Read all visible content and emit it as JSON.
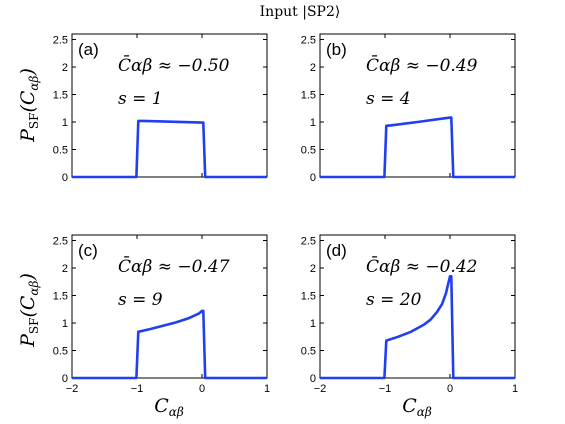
{
  "figure": {
    "title": "Input |SP2⟩",
    "ylabel_main": "P",
    "ylabel_sub": "SF",
    "ylabel_arg": "(C",
    "ylabel_argsub": "αβ",
    "ylabel_close": ")",
    "xlabel_main": "C",
    "xlabel_sub": "αβ"
  },
  "chart_data": [
    {
      "type": "line",
      "panel": "(a)",
      "annotation_c": "C̄αβ ≈ −0.50",
      "annotation_s": "s = 1",
      "xlim": [
        -2,
        1
      ],
      "ylim": [
        0,
        2.6
      ],
      "xticks": [
        -2,
        -1,
        0,
        1
      ],
      "yticks": [
        0,
        0.5,
        1,
        1.5,
        2,
        2.5
      ],
      "series": [
        {
          "x": [
            -2,
            -1.01,
            -0.98,
            -0.9,
            0,
            0.02,
            0.05,
            1
          ],
          "y": [
            0,
            0,
            1.02,
            1.02,
            0.99,
            0.99,
            0,
            0
          ]
        }
      ]
    },
    {
      "type": "line",
      "panel": "(b)",
      "annotation_c": "C̄αβ ≈ −0.49",
      "annotation_s": "s = 4",
      "xlim": [
        -2,
        1
      ],
      "ylim": [
        0,
        2.6
      ],
      "xticks": [
        -2,
        -1,
        0,
        1
      ],
      "yticks": [
        0,
        0.5,
        1,
        1.5,
        2,
        2.5
      ],
      "series": [
        {
          "x": [
            -2,
            -1.01,
            -0.98,
            -0.9,
            -0.5,
            0,
            0.02,
            0.05,
            1
          ],
          "y": [
            0,
            0,
            0.93,
            0.94,
            1.0,
            1.08,
            1.08,
            0,
            0
          ]
        }
      ]
    },
    {
      "type": "line",
      "panel": "(c)",
      "annotation_c": "C̄αβ ≈ −0.47",
      "annotation_s": "s = 9",
      "xlim": [
        -2,
        1
      ],
      "ylim": [
        0,
        2.6
      ],
      "xticks": [
        -2,
        -1,
        0,
        1
      ],
      "yticks": [
        0,
        0.5,
        1,
        1.5,
        2,
        2.5
      ],
      "series": [
        {
          "x": [
            -2,
            -1.01,
            -0.98,
            -0.8,
            -0.6,
            -0.4,
            -0.2,
            -0.05,
            0,
            0.02,
            0.05,
            1
          ],
          "y": [
            0,
            0,
            0.84,
            0.89,
            0.95,
            1.01,
            1.09,
            1.17,
            1.22,
            1.22,
            0,
            0
          ]
        }
      ]
    },
    {
      "type": "line",
      "panel": "(d)",
      "annotation_c": "C̄αβ ≈ −0.42",
      "annotation_s": "s = 20",
      "xlim": [
        -2,
        1
      ],
      "ylim": [
        0,
        2.6
      ],
      "xticks": [
        -2,
        -1,
        0,
        1
      ],
      "yticks": [
        0,
        0.5,
        1,
        1.5,
        2,
        2.5
      ],
      "series": [
        {
          "x": [
            -2,
            -1.01,
            -0.98,
            -0.8,
            -0.6,
            -0.4,
            -0.3,
            -0.2,
            -0.12,
            -0.06,
            -0.03,
            0,
            0.02,
            0.05,
            1
          ],
          "y": [
            0,
            0,
            0.68,
            0.75,
            0.84,
            0.97,
            1.06,
            1.2,
            1.35,
            1.55,
            1.7,
            1.85,
            1.85,
            0,
            0
          ]
        }
      ]
    }
  ]
}
